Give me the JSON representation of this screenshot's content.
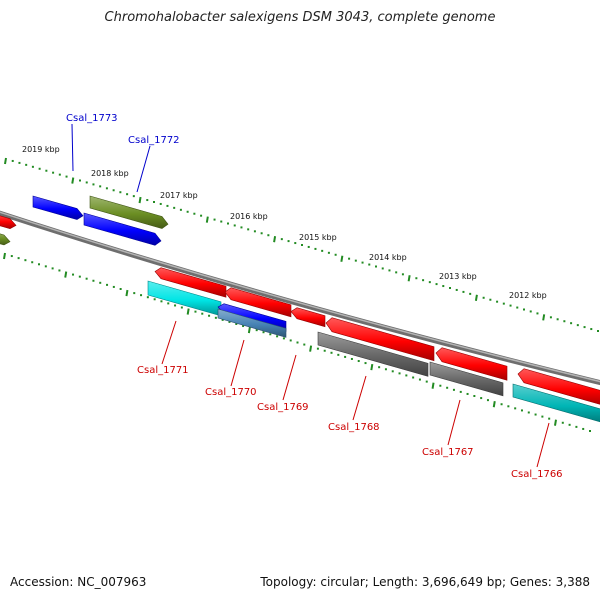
{
  "title": "Chromohalobacter salexigens DSM 3043, complete genome",
  "footer": {
    "accession": "Accession: NC_007963",
    "summary": "Topology: circular; Length: 3,696,649 bp; Genes: 3,388"
  },
  "colors": {
    "backbone": "#8a8a8a",
    "tick": "#228b22",
    "blue": "#0000ff",
    "olive": "#6b8e23",
    "red": "#ff0000",
    "cyan": "#00e5e5",
    "gray": "#666666",
    "steel": "#4682b4",
    "teal": "#00b5b5",
    "label_top": "#0000cc",
    "label_bottom": "#cc0000"
  },
  "kbp_labels": [
    "2019 kbp",
    "2018 kbp",
    "2017 kbp",
    "2016 kbp",
    "2015 kbp",
    "2014 kbp",
    "2013 kbp",
    "2012 kbp"
  ],
  "genes": [
    {
      "id": "Csal_1773",
      "color": "blue",
      "strand": "top"
    },
    {
      "id": "Csal_1772",
      "color": "blue",
      "strand": "top"
    },
    {
      "id": "Csal_1771",
      "color": "red",
      "strand": "bottom"
    },
    {
      "id": "Csal_1770",
      "color": "red",
      "strand": "bottom"
    },
    {
      "id": "Csal_1769",
      "color": "red",
      "strand": "bottom"
    },
    {
      "id": "Csal_1768",
      "color": "red",
      "strand": "bottom"
    },
    {
      "id": "Csal_1767",
      "color": "red",
      "strand": "bottom"
    },
    {
      "id": "Csal_1766",
      "color": "red",
      "strand": "bottom"
    }
  ],
  "features": [
    {
      "color": "red"
    },
    {
      "color": "olive"
    },
    {
      "color": "blue"
    },
    {
      "color": "olive"
    },
    {
      "color": "blue"
    },
    {
      "color": "red"
    },
    {
      "color": "cyan"
    },
    {
      "color": "red"
    },
    {
      "color": "blue"
    },
    {
      "color": "red"
    },
    {
      "color": "red"
    },
    {
      "color": "gray"
    },
    {
      "color": "red"
    },
    {
      "color": "gray"
    },
    {
      "color": "red"
    },
    {
      "color": "teal"
    },
    {
      "color": "steel"
    }
  ]
}
